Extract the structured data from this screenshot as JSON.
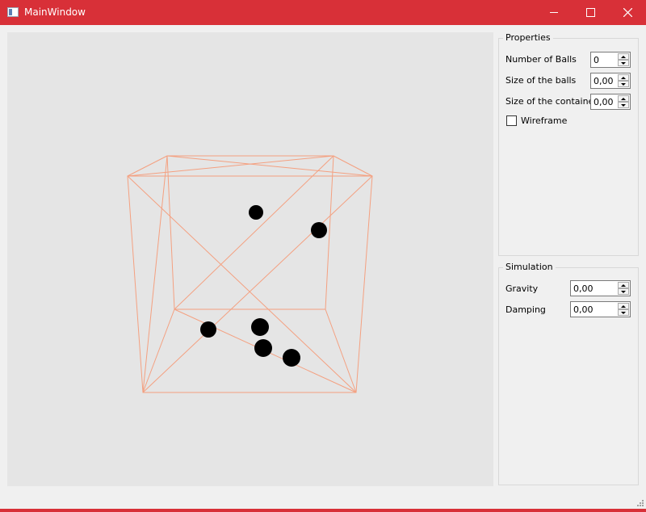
{
  "window": {
    "title": "MainWindow",
    "titlebar_color": "#d83038",
    "controls": [
      "minimize-icon",
      "maximize-icon",
      "close-icon"
    ]
  },
  "viewport": {
    "background": "#e5e5e5",
    "wire_color": "#f4a080",
    "ball_color": "#000000"
  },
  "properties": {
    "title": "Properties",
    "number_of_balls_label": "Number of Balls",
    "number_of_balls_value": "0",
    "size_of_balls_label": "Size of the balls",
    "size_of_balls_value": "0,00",
    "size_of_container_label": "Size of the container",
    "size_of_container_value": "0,00",
    "wireframe_label": "Wireframe",
    "wireframe_checked": false
  },
  "simulation": {
    "title": "Simulation",
    "gravity_label": "Gravity",
    "gravity_value": "0,00",
    "damping_label": "Damping",
    "damping_value": "0,00"
  }
}
